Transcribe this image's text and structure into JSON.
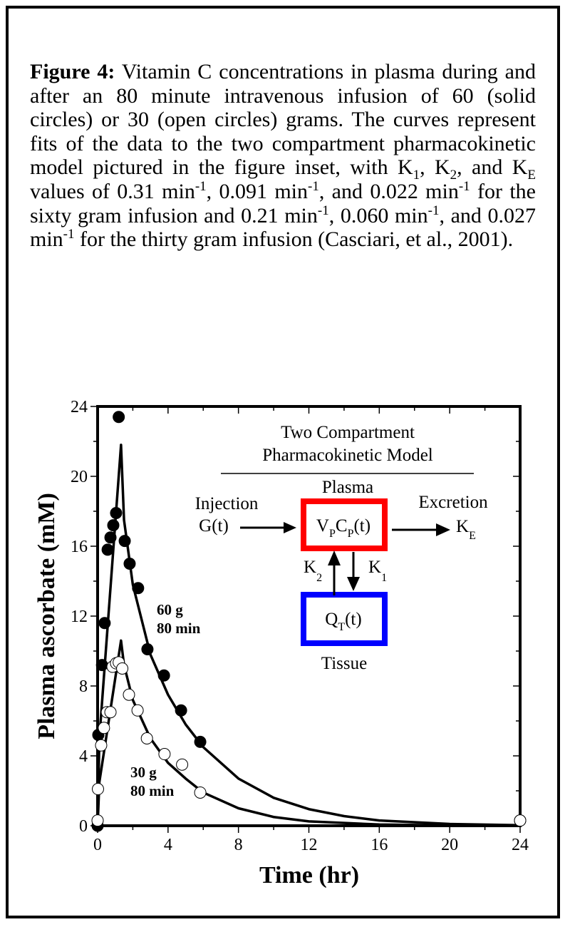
{
  "caption": {
    "segments": [
      {
        "t": "Figure 4:",
        "s": "b"
      },
      {
        "t": "  Vitamin C concentrations in plasma during and after an 80 minute intravenous  infusion of 60 (solid circles) or 30 (open circles) grams.  The curves represent fits of the  data  to  the  two compartment pharmacokinetic model pictured in the figure inset, with K",
        "s": ""
      },
      {
        "t": "1",
        "s": "sub"
      },
      {
        "t": ", K",
        "s": ""
      },
      {
        "t": "2",
        "s": "sub"
      },
      {
        "t": ", and K",
        "s": ""
      },
      {
        "t": "E",
        "s": "sub"
      },
      {
        "t": " values of 0.31 min",
        "s": ""
      },
      {
        "t": "-1",
        "s": "sup"
      },
      {
        "t": ", 0.091 min",
        "s": ""
      },
      {
        "t": "-1",
        "s": "sup"
      },
      {
        "t": ", and 0.022 min",
        "s": ""
      },
      {
        "t": "-1",
        "s": "sup"
      },
      {
        "t": " for the sixty gram infusion and 0.21 min",
        "s": ""
      },
      {
        "t": "-1",
        "s": "sup"
      },
      {
        "t": ", 0.060 min",
        "s": ""
      },
      {
        "t": "-1",
        "s": "sup"
      },
      {
        "t": ", and 0.027 min",
        "s": ""
      },
      {
        "t": "-1",
        "s": "sup"
      },
      {
        "t": " for the thirty gram infusion (Casciari, et al., 2001).",
        "s": ""
      }
    ]
  },
  "chart_data": {
    "type": "scatter",
    "xlabel": "Time (hr)",
    "ylabel": "Plasma ascorbate (mM)",
    "xlim": [
      0,
      24
    ],
    "ylim": [
      0,
      24
    ],
    "xticks": [
      0,
      4,
      8,
      12,
      16,
      20,
      24
    ],
    "yticks": [
      0,
      4,
      8,
      12,
      16,
      20,
      24
    ],
    "grid": false,
    "series": [
      {
        "name": "60 g",
        "label_lines": [
          "60 g",
          "80 min"
        ],
        "marker": "filled-circle",
        "points": [
          [
            0,
            0
          ],
          [
            0.04,
            5.2
          ],
          [
            0.25,
            9.2
          ],
          [
            0.4,
            11.6
          ],
          [
            0.57,
            15.8
          ],
          [
            0.73,
            16.5
          ],
          [
            0.89,
            17.2
          ],
          [
            1.05,
            17.9
          ],
          [
            1.2,
            23.4
          ],
          [
            1.54,
            16.3
          ],
          [
            1.82,
            15.0
          ],
          [
            2.3,
            13.6
          ],
          [
            2.83,
            10.1
          ],
          [
            3.77,
            8.6
          ],
          [
            4.74,
            6.6
          ],
          [
            5.83,
            4.8
          ],
          [
            24,
            0.3
          ]
        ],
        "fit": [
          [
            0,
            0
          ],
          [
            0.1,
            5
          ],
          [
            1.33,
            21.8
          ],
          [
            1.5,
            17.5
          ],
          [
            2,
            13.8
          ],
          [
            3,
            9.8
          ],
          [
            4,
            7.5
          ],
          [
            5,
            5.8
          ],
          [
            6,
            4.5
          ],
          [
            8,
            2.7
          ],
          [
            10,
            1.6
          ],
          [
            12,
            0.95
          ],
          [
            14,
            0.55
          ],
          [
            16,
            0.3
          ],
          [
            20,
            0.1
          ],
          [
            24,
            0.03
          ]
        ]
      },
      {
        "name": "30 g",
        "label_lines": [
          "30 g",
          "80 min"
        ],
        "marker": "open-circle",
        "points": [
          [
            0,
            0.3
          ],
          [
            0.02,
            2.1
          ],
          [
            0.2,
            4.6
          ],
          [
            0.36,
            5.6
          ],
          [
            0.53,
            6.5
          ],
          [
            0.73,
            6.5
          ],
          [
            0.85,
            9.1
          ],
          [
            1.05,
            9.3
          ],
          [
            1.2,
            9.35
          ],
          [
            1.4,
            9.0
          ],
          [
            1.78,
            7.5
          ],
          [
            2.27,
            6.6
          ],
          [
            2.8,
            5.0
          ],
          [
            3.8,
            4.1
          ],
          [
            4.8,
            3.5
          ],
          [
            5.83,
            1.9
          ],
          [
            24,
            0.3
          ]
        ],
        "fit": [
          [
            0,
            0
          ],
          [
            0.1,
            2.5
          ],
          [
            1.33,
            10.6
          ],
          [
            1.5,
            9.2
          ],
          [
            2,
            7.2
          ],
          [
            3,
            5.0
          ],
          [
            4,
            3.6
          ],
          [
            5,
            2.7
          ],
          [
            6,
            1.9
          ],
          [
            8,
            1.0
          ],
          [
            10,
            0.5
          ],
          [
            12,
            0.25
          ],
          [
            16,
            0.07
          ],
          [
            20,
            0.02
          ],
          [
            24,
            0
          ]
        ]
      }
    ],
    "inset": {
      "title_lines": [
        "Two Compartment",
        "Pharmacokinetic Model"
      ],
      "plasma_label": "Plasma",
      "plasma_box": {
        "main1": "V",
        "sub1": "P",
        "main2": "C",
        "sub2": "P",
        "tail": "(t)"
      },
      "tissue_box": {
        "main": "Q",
        "sub": "T",
        "tail": "(t)"
      },
      "tissue_label": "Tissue",
      "input_lines": [
        "Injection",
        "G(t)"
      ],
      "output_label": "Excretion",
      "ke": {
        "main": "K",
        "sub": "E"
      },
      "k1": {
        "main": "K",
        "sub": "1"
      },
      "k2": {
        "main": "K",
        "sub": "2"
      },
      "plasma_color": "#ff0000",
      "tissue_color": "#0000ff"
    }
  }
}
